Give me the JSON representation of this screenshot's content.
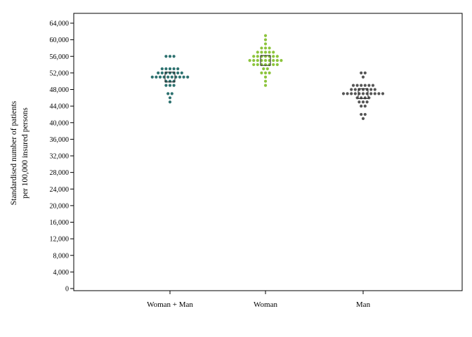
{
  "chart_data": {
    "type": "scatter",
    "subtype": "dot-plot",
    "title": "",
    "xlabel": "",
    "ylabel_lines": [
      "Standardised number of patients",
      "per 100,000 insured persons"
    ],
    "ylim": [
      0,
      66000
    ],
    "yticks": [
      0,
      4000,
      8000,
      12000,
      16000,
      20000,
      24000,
      28000,
      32000,
      36000,
      40000,
      44000,
      48000,
      52000,
      56000,
      60000,
      64000
    ],
    "ytick_labels": [
      "0",
      "4,000",
      "8,000",
      "12,000",
      "16,000",
      "20,000",
      "24,000",
      "28,000",
      "32,000",
      "36,000",
      "40,000",
      "44,000",
      "48,000",
      "52,000",
      "56,000",
      "60,000",
      "64,000"
    ],
    "grid": false,
    "categories": [
      "Woman + Man",
      "Woman",
      "Man"
    ],
    "series": [
      {
        "color": "#2e7270",
        "mean": 51000,
        "rows": [
          {
            "y": 56000,
            "n": 3
          },
          {
            "y": 53000,
            "n": 5
          },
          {
            "y": 52000,
            "n": 7
          },
          {
            "y": 51000,
            "n": 10
          },
          {
            "y": 50000,
            "n": 3
          },
          {
            "y": 49000,
            "n": 3
          },
          {
            "y": 47000,
            "n": 2
          },
          {
            "y": 46000,
            "n": 1
          },
          {
            "y": 45000,
            "n": 1
          }
        ]
      },
      {
        "color": "#8cc43c",
        "mean": 55000,
        "rows": [
          {
            "y": 61000,
            "n": 1
          },
          {
            "y": 60000,
            "n": 1
          },
          {
            "y": 59000,
            "n": 1
          },
          {
            "y": 58000,
            "n": 3
          },
          {
            "y": 57000,
            "n": 5
          },
          {
            "y": 56000,
            "n": 7
          },
          {
            "y": 55000,
            "n": 9
          },
          {
            "y": 54000,
            "n": 7
          },
          {
            "y": 53000,
            "n": 2
          },
          {
            "y": 52000,
            "n": 3
          },
          {
            "y": 51000,
            "n": 1
          },
          {
            "y": 50000,
            "n": 1
          },
          {
            "y": 49000,
            "n": 1
          }
        ]
      },
      {
        "color": "#555555",
        "mean": 47000,
        "rows": [
          {
            "y": 52000,
            "n": 2
          },
          {
            "y": 51000,
            "n": 1
          },
          {
            "y": 49000,
            "n": 6
          },
          {
            "y": 48000,
            "n": 7
          },
          {
            "y": 47000,
            "n": 11
          },
          {
            "y": 46000,
            "n": 4
          },
          {
            "y": 45000,
            "n": 3
          },
          {
            "y": 44000,
            "n": 2
          },
          {
            "y": 42000,
            "n": 2
          },
          {
            "y": 41000,
            "n": 1
          }
        ]
      }
    ]
  }
}
